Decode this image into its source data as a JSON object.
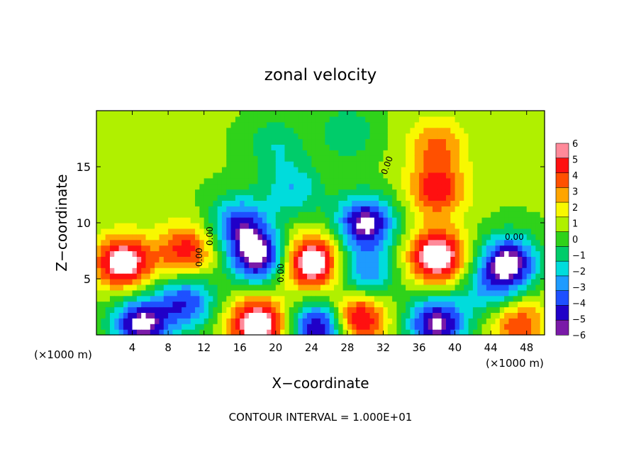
{
  "chart_data": {
    "type": "heatmap",
    "title": "zonal velocity",
    "xlabel": "X−coordinate",
    "ylabel": "Z−coordinate",
    "x_unit_left": "(×1000 m)",
    "x_unit_right": "(×1000 m)",
    "footer": "CONTOUR INTERVAL = 1.000E+01",
    "xlim": [
      0,
      50
    ],
    "ylim": [
      0,
      20
    ],
    "x_ticks": [
      4,
      8,
      12,
      16,
      20,
      24,
      28,
      32,
      36,
      40,
      44,
      48
    ],
    "y_ticks": [
      5,
      10,
      15
    ],
    "colorbar": {
      "min": -6,
      "max": 6,
      "labels": [
        "6",
        "5",
        "4",
        "3",
        "2",
        "1",
        "0",
        "−1",
        "−2",
        "−3",
        "−4",
        "−5",
        "−6"
      ]
    },
    "contour_labels": [
      "0.00",
      "0.00",
      "0.00",
      "0.00",
      "0.00"
    ],
    "blobs": [
      {
        "x": 3,
        "z": 6.5,
        "v": 6.5
      },
      {
        "x": 10,
        "z": 7.5,
        "v": 4.5
      },
      {
        "x": 18,
        "z": 7,
        "v": -7
      },
      {
        "x": 16,
        "z": 10,
        "v": -5
      },
      {
        "x": 24,
        "z": 6.5,
        "v": 7
      },
      {
        "x": 30,
        "z": 10,
        "v": -7
      },
      {
        "x": 22,
        "z": 13,
        "v": -3
      },
      {
        "x": 30,
        "z": 5.5,
        "v": -4
      },
      {
        "x": 38,
        "z": 7,
        "v": 7
      },
      {
        "x": 38,
        "z": 13,
        "v": 4.5
      },
      {
        "x": 38,
        "z": 17,
        "v": 3
      },
      {
        "x": 46,
        "z": 6.5,
        "v": -7
      },
      {
        "x": 44,
        "z": 4,
        "v": -3
      },
      {
        "x": 5,
        "z": 1,
        "v": -7
      },
      {
        "x": 10,
        "z": 3,
        "v": -5
      },
      {
        "x": 18,
        "z": 1,
        "v": 7
      },
      {
        "x": 25,
        "z": 0.7,
        "v": -7
      },
      {
        "x": 29,
        "z": 1.5,
        "v": 6
      },
      {
        "x": 38,
        "z": 1,
        "v": -7
      },
      {
        "x": 47,
        "z": 1,
        "v": 4
      },
      {
        "x": 20,
        "z": 17,
        "v": -2
      },
      {
        "x": 28,
        "z": 18,
        "v": -2
      }
    ],
    "grid": false,
    "legend": "right"
  }
}
